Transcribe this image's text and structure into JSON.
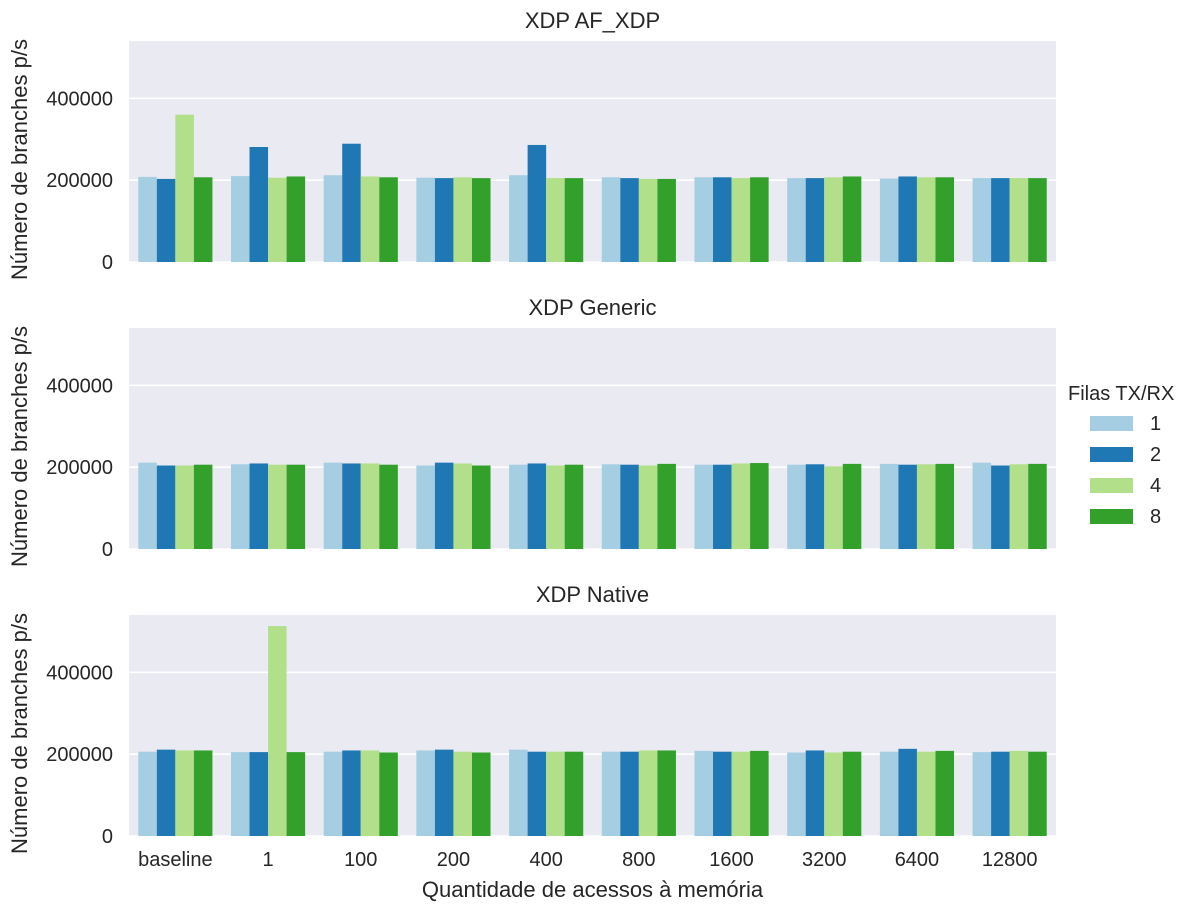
{
  "chart_data": {
    "type": "bar",
    "xlabel": "Quantidade de acessos à memória",
    "ylabel": "Número de branches p/s",
    "categories": [
      "baseline",
      "1",
      "100",
      "200",
      "400",
      "800",
      "1600",
      "3200",
      "6400",
      "12800"
    ],
    "yticks": [
      "0",
      "200000",
      "400000"
    ],
    "ylim": [
      0,
      540000
    ],
    "grid": true,
    "legend": {
      "title": "Filas TX/RX",
      "position": "right",
      "entries": [
        {
          "label": "1",
          "color": "#a6cee3"
        },
        {
          "label": "2",
          "color": "#1f78b4"
        },
        {
          "label": "4",
          "color": "#b2df8a"
        },
        {
          "label": "8",
          "color": "#33a02c"
        }
      ]
    },
    "panels": [
      {
        "title": "XDP AF_XDP",
        "series": [
          {
            "name": "1",
            "values": [
              208000,
              210000,
              212000,
              206000,
              212000,
              207000,
              207000,
              205000,
              204000,
              205000
            ]
          },
          {
            "name": "2",
            "values": [
              203000,
              281000,
              289000,
              205000,
              286000,
              205000,
              207000,
              205000,
              209000,
              205000
            ]
          },
          {
            "name": "4",
            "values": [
              360000,
              206000,
              209000,
              207000,
              205000,
              203000,
              205000,
              207000,
              207000,
              205000
            ]
          },
          {
            "name": "8",
            "values": [
              207000,
              209000,
              207000,
              205000,
              205000,
              203000,
              207000,
              209000,
              207000,
              205000
            ]
          }
        ]
      },
      {
        "title": "XDP Generic",
        "series": [
          {
            "name": "1",
            "values": [
              211000,
              207000,
              211000,
              204000,
              206000,
              207000,
              206000,
              206000,
              208000,
              211000
            ]
          },
          {
            "name": "2",
            "values": [
              204000,
              209000,
              209000,
              211000,
              209000,
              206000,
              206000,
              207000,
              206000,
              204000
            ]
          },
          {
            "name": "4",
            "values": [
              204000,
              206000,
              209000,
              209000,
              204000,
              204000,
              209000,
              202000,
              207000,
              207000
            ]
          },
          {
            "name": "8",
            "values": [
              206000,
              206000,
              206000,
              204000,
              206000,
              208000,
              210000,
              208000,
              208000,
              208000
            ]
          }
        ]
      },
      {
        "title": "XDP Native",
        "series": [
          {
            "name": "1",
            "values": [
              206000,
              205000,
              206000,
              209000,
              211000,
              206000,
              208000,
              204000,
              206000,
              205000
            ]
          },
          {
            "name": "2",
            "values": [
              211000,
              205000,
              209000,
              211000,
              206000,
              206000,
              206000,
              209000,
              213000,
              206000
            ]
          },
          {
            "name": "4",
            "values": [
              209000,
              513000,
              209000,
              206000,
              206000,
              209000,
              206000,
              204000,
              206000,
              208000
            ]
          },
          {
            "name": "8",
            "values": [
              209000,
              205000,
              204000,
              204000,
              206000,
              209000,
              208000,
              206000,
              208000,
              206000
            ]
          }
        ]
      }
    ]
  }
}
